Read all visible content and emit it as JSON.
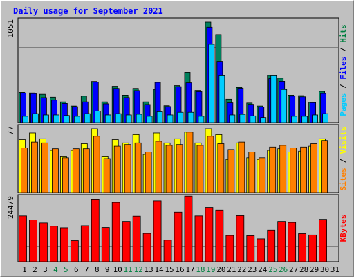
{
  "chart_data": {
    "type": "bar",
    "title": "Daily usage for September 2021",
    "categories": [
      "1",
      "2",
      "3",
      "4",
      "5",
      "6",
      "7",
      "8",
      "9",
      "10",
      "11",
      "12",
      "13",
      "14",
      "15",
      "16",
      "17",
      "18",
      "19",
      "20",
      "21",
      "22",
      "23",
      "24",
      "25",
      "26",
      "27",
      "28",
      "29",
      "30",
      "31"
    ],
    "weekend_days": [
      "4",
      "5",
      "11",
      "12",
      "18",
      "19",
      "25",
      "26"
    ],
    "panels": [
      {
        "id": "pages-files-hits",
        "ymax_label": "1051",
        "ymax": 1051,
        "legend": [
          {
            "text": "Pages",
            "color": "#00ccff"
          },
          {
            "text": "Files",
            "color": "#0000ff"
          },
          {
            "text": "Hits",
            "color": "#008040"
          }
        ],
        "separator": " / ",
        "series": [
          {
            "name": "Hits",
            "color": "#00805c",
            "values": [
              316,
              310,
              296,
              266,
              216,
              173,
              277,
              430,
              216,
              380,
              287,
              357,
              216,
              344,
              176,
              387,
              526,
              336,
              1051,
              921,
              244,
              367,
              204,
              173,
              493,
              465,
              287,
              282,
              211,
              326,
              0
            ]
          },
          {
            "name": "Files",
            "color": "#0000ff",
            "values": [
              310,
              303,
              261,
              234,
              200,
              166,
              216,
              423,
              196,
              357,
              262,
              334,
              189,
              420,
              167,
              376,
              416,
              323,
              998,
              641,
              206,
              359,
              191,
              163,
              460,
              432,
              277,
              270,
              208,
              304,
              0
            ]
          },
          {
            "name": "Pages",
            "color": "#00ccff",
            "values": [
              66,
              93,
              80,
              80,
              74,
              66,
              93,
              119,
              80,
              93,
              80,
              87,
              66,
              113,
              80,
              107,
              107,
              66,
              819,
              490,
              80,
              86,
              70,
              53,
              490,
              346,
              66,
              66,
              80,
              93,
              0
            ]
          }
        ]
      },
      {
        "id": "sites-visits",
        "ymax_label": "77",
        "ymax": 77,
        "legend": [
          {
            "text": "Sites",
            "color": "#ff8000"
          },
          {
            "text": "Visits",
            "color": "#ffff00"
          }
        ],
        "separator": " / ",
        "series": [
          {
            "name": "Visits",
            "color": "#ffff00",
            "values": [
              64,
              72,
              65,
              51,
              44,
              51,
              59,
              77,
              44,
              64,
              60,
              70,
              46,
              72,
              60,
              65,
              73,
              60,
              77,
              70,
              40,
              60,
              42,
              40,
              51,
              53,
              49,
              50,
              56,
              65,
              0
            ]
          },
          {
            "name": "Sites",
            "color": "#ff8000",
            "values": [
              54,
              61,
              60,
              53,
              42,
              53,
              53,
              68,
              41,
              56,
              58,
              60,
              49,
              62,
              57,
              58,
              73,
              57,
              68,
              59,
              52,
              61,
              49,
              42,
              55,
              57,
              54,
              55,
              59,
              63,
              0
            ]
          }
        ]
      },
      {
        "id": "kbytes",
        "ymax_label": "24479",
        "ymax": 24479,
        "legend": [
          {
            "text": "KBytes",
            "color": "#ff0000"
          }
        ],
        "separator": "",
        "series": [
          {
            "name": "KBytes",
            "color": "#ff0000",
            "values": [
              17800,
              16300,
              15100,
              13800,
              13200,
              8200,
              14000,
              24100,
              13300,
              23100,
              15700,
              17700,
              11000,
              23700,
              8400,
              19300,
              25500,
              17800,
              21100,
              20100,
              10200,
              17900,
              10100,
              8900,
              12300,
              15700,
              15300,
              10900,
              10400,
              16500,
              0
            ]
          }
        ]
      }
    ]
  }
}
